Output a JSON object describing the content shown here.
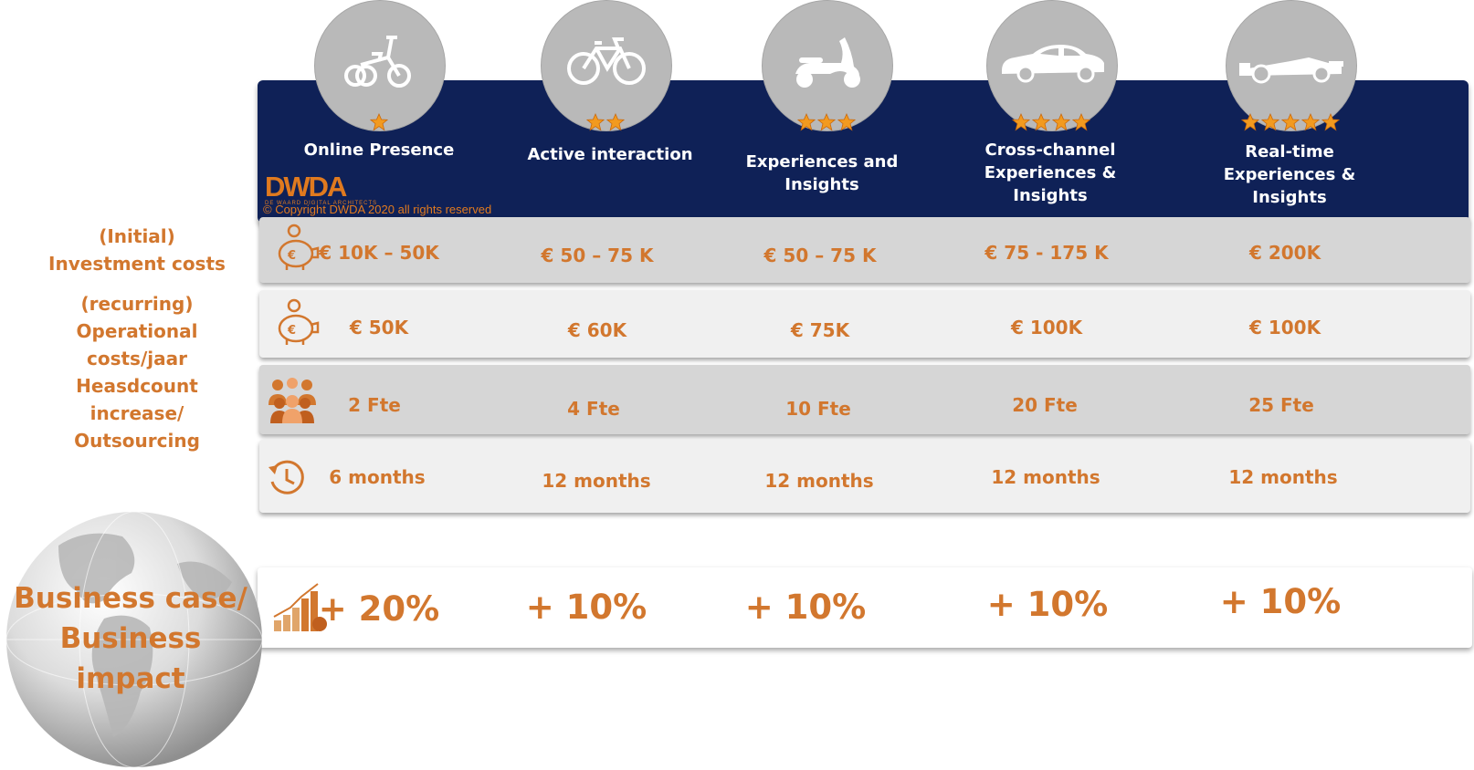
{
  "brand": {
    "logo_text": "DWDA",
    "logo_subtitle": "DE WAARD DIGITAL ARCHITECTS",
    "copyright": "© Copyright DWDA 2020 all rights reserved"
  },
  "columns": [
    {
      "title": "Online Presence",
      "icon": "tricycle-icon",
      "stars": 1
    },
    {
      "title": "Active interaction",
      "icon": "bicycle-icon",
      "stars": 2
    },
    {
      "title": "Experiences and\nInsights",
      "icon": "scooter-icon",
      "stars": 3
    },
    {
      "title": "Cross-channel\nExperiences &\nInsights",
      "icon": "car-icon",
      "stars": 4
    },
    {
      "title": "Real-time\nExperiences &\nInsights",
      "icon": "race-car-icon",
      "stars": 5
    }
  ],
  "rows": [
    {
      "label": "(Initial)\nInvestment costs",
      "icon": "piggy-bank-euro-icon",
      "values": [
        "€ 10K – 50K",
        "€ 50 – 75 K",
        "€ 50 – 75 K",
        "€ 75 - 175 K",
        "€ 200K"
      ]
    },
    {
      "label": "(recurring)\nOperational costs/jaar",
      "icon": "piggy-bank-euro-icon",
      "values": [
        "€ 50K",
        "€ 60K",
        "€ 75K",
        "€ 100K",
        "€ 100K"
      ]
    },
    {
      "label": "Heasdcount increase/\nOutsourcing",
      "icon": "people-group-icon",
      "values": [
        "2 Fte",
        "4 Fte",
        "10 Fte",
        "20 Fte",
        "25 Fte"
      ]
    },
    {
      "label": "",
      "icon": "clock-icon",
      "values": [
        "6 months",
        "12 months",
        "12 months",
        "12 months",
        "12 months"
      ]
    }
  ],
  "impact": {
    "label": "Business case/\nBusiness impact",
    "icon": "growth-chart-icon",
    "values": [
      "+ 20%",
      "+ 10%",
      "+ 10%",
      "+ 10%",
      "+ 10%"
    ]
  },
  "colors": {
    "accent_orange": "#d2772e",
    "header_navy": "#0f2157",
    "star_orange": "#f29a1f"
  }
}
